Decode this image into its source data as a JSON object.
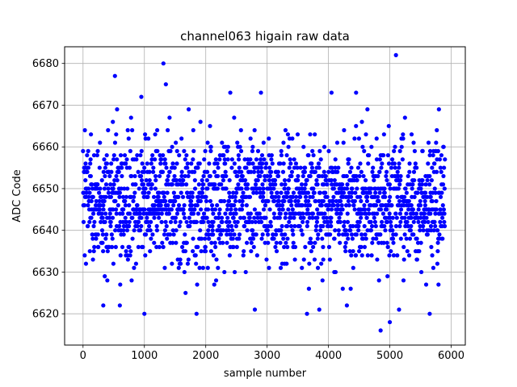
{
  "chart_data": {
    "type": "scatter",
    "title": "channel063 higain raw data",
    "xlabel": "sample number",
    "ylabel": "ADC Code",
    "xlim": [
      -300,
      6230
    ],
    "ylim": [
      6612.5,
      6684
    ],
    "xticks": [
      0,
      1000,
      2000,
      3000,
      4000,
      5000,
      6000
    ],
    "yticks": [
      6620,
      6630,
      6640,
      6650,
      6660,
      6670,
      6680
    ],
    "grid": true,
    "marker_color": "#0000ff",
    "n_samples": 5900,
    "series": [
      {
        "typical_range": [
          6630,
          6665
        ],
        "center": 6647,
        "outliers": [
          {
            "x": 1000,
            "y": 6620
          },
          {
            "x": 1310,
            "y": 6680
          },
          {
            "x": 1350,
            "y": 6675
          },
          {
            "x": 520,
            "y": 6677
          },
          {
            "x": 950,
            "y": 6672
          },
          {
            "x": 1850,
            "y": 6620
          },
          {
            "x": 4850,
            "y": 6616
          },
          {
            "x": 5000,
            "y": 6618
          },
          {
            "x": 5100,
            "y": 6682
          },
          {
            "x": 3650,
            "y": 6620
          },
          {
            "x": 3850,
            "y": 6621
          },
          {
            "x": 5650,
            "y": 6620
          },
          {
            "x": 4050,
            "y": 6673
          },
          {
            "x": 2900,
            "y": 6673
          },
          {
            "x": 4450,
            "y": 6673
          },
          {
            "x": 2400,
            "y": 6673
          },
          {
            "x": 5800,
            "y": 6669
          },
          {
            "x": 330,
            "y": 6622
          },
          {
            "x": 600,
            "y": 6622
          },
          {
            "x": 2800,
            "y": 6621
          },
          {
            "x": 4300,
            "y": 6622
          },
          {
            "x": 5150,
            "y": 6621
          }
        ]
      }
    ]
  }
}
